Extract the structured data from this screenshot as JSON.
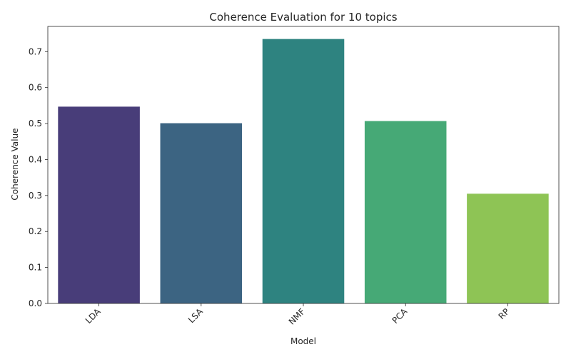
{
  "chart_data": {
    "type": "bar",
    "title": "Coherence Evaluation for 10 topics",
    "xlabel": "Model",
    "ylabel": "Coherence Value",
    "categories": [
      "LDA",
      "LSA",
      "NMF",
      "PCA",
      "RP"
    ],
    "values": [
      0.547,
      0.501,
      0.735,
      0.507,
      0.305
    ],
    "colors": [
      "#483d79",
      "#3c6482",
      "#2e8380",
      "#46a976",
      "#8ec455"
    ],
    "ylim": [
      0,
      0.77
    ],
    "yticks": [
      "0.0",
      "0.1",
      "0.2",
      "0.3",
      "0.4",
      "0.5",
      "0.6",
      "0.7"
    ],
    "grid": false,
    "legend": "none"
  }
}
